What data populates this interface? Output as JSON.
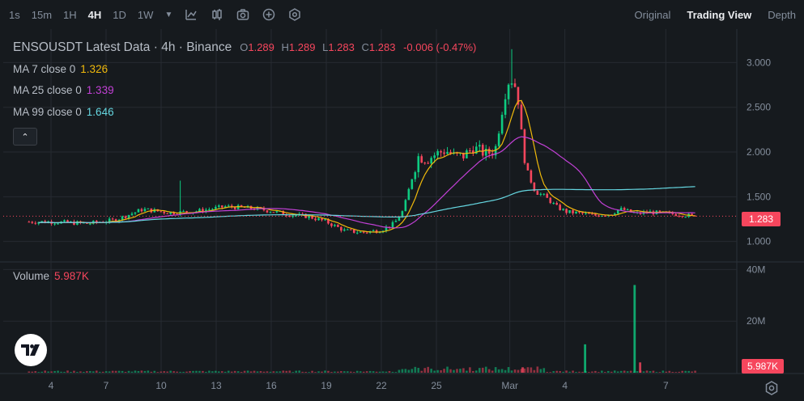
{
  "toolbar": {
    "intervals": [
      "1s",
      "15m",
      "1H",
      "4H",
      "1D",
      "1W"
    ],
    "active_interval": "4H",
    "icons": [
      "chevron-down-icon",
      "line-tool-icon",
      "candle-type-icon",
      "camera-icon",
      "add-indicator-icon",
      "settings-hex-icon"
    ]
  },
  "views": {
    "original": "Original",
    "trading_view": "Trading View",
    "depth": "Depth",
    "active": "Trading View"
  },
  "legend": {
    "symbol_title": "ENSOUSDT Latest Data · 4h · Binance",
    "o_key": "O",
    "o_val": "1.289",
    "h_key": "H",
    "h_val": "1.289",
    "l_key": "L",
    "l_val": "1.283",
    "c_key": "C",
    "c_val": "1.283",
    "change": "-0.006 (-0.47%)",
    "ma7_label": "MA 7 close 0",
    "ma7_val": "1.326",
    "ma25_label": "MA 25 close 0",
    "ma25_val": "1.339",
    "ma99_label": "MA 99 close 0",
    "ma99_val": "1.646"
  },
  "volume_legend": {
    "label": "Volume",
    "value": "5.987K"
  },
  "price_tag": "1.283",
  "volume_tag": "5.987K",
  "colors": {
    "up": "#0ecb81",
    "down": "#f6465d",
    "ma7": "#f0b90b",
    "ma25": "#c240d6",
    "ma99": "#65d6e0",
    "grid": "#262b31",
    "text": "#848e9c"
  },
  "chart_data": {
    "type": "candlestick",
    "price_axis": {
      "ticks": [
        "3.000",
        "2.500",
        "2.000",
        "1.500",
        "1.000"
      ],
      "values": [
        3.0,
        2.5,
        2.0,
        1.5,
        1.0
      ],
      "range": [
        0.78,
        3.32
      ]
    },
    "volume_axis": {
      "ticks": [
        "40M",
        "20M"
      ],
      "values": [
        40,
        20
      ],
      "range": [
        0,
        42
      ],
      "unit": "M"
    },
    "x_axis": {
      "ticks": [
        "4",
        "7",
        "10",
        "13",
        "16",
        "19",
        "22",
        "25",
        "Mar",
        "4",
        "7"
      ]
    },
    "last_price": 1.283,
    "ma_lines": [
      {
        "name": "MA 7",
        "color": "#f0b90b"
      },
      {
        "name": "MA 25",
        "color": "#c240d6"
      },
      {
        "name": "MA 99",
        "color": "#65d6e0"
      }
    ],
    "price_series": [
      [
        0.0,
        1.22
      ],
      [
        2.0,
        1.2
      ],
      [
        3.5,
        1.24
      ],
      [
        5.0,
        1.36
      ],
      [
        6.5,
        1.32
      ],
      [
        8.0,
        1.34
      ],
      [
        9.5,
        1.39
      ],
      [
        11.0,
        1.37
      ],
      [
        12.0,
        1.34
      ],
      [
        13.0,
        1.3
      ],
      [
        14.0,
        1.28
      ],
      [
        15.0,
        1.22
      ],
      [
        16.0,
        1.12
      ],
      [
        17.0,
        1.1
      ],
      [
        18.0,
        1.13
      ],
      [
        18.7,
        1.2
      ],
      [
        19.2,
        1.35
      ],
      [
        19.6,
        1.66
      ],
      [
        20.0,
        1.95
      ],
      [
        20.5,
        1.92
      ],
      [
        21.0,
        1.98
      ],
      [
        21.5,
        2.02
      ],
      [
        22.0,
        1.95
      ],
      [
        22.5,
        1.96
      ],
      [
        23.0,
        2.05
      ],
      [
        23.7,
        1.98
      ],
      [
        24.2,
        2.02
      ],
      [
        24.7,
        2.62
      ],
      [
        25.0,
        2.84
      ],
      [
        25.4,
        2.7
      ],
      [
        25.7,
        2.05
      ],
      [
        26.0,
        1.75
      ],
      [
        26.4,
        1.55
      ],
      [
        26.8,
        1.52
      ],
      [
        27.2,
        1.45
      ],
      [
        27.6,
        1.38
      ],
      [
        28.1,
        1.33
      ],
      [
        28.6,
        1.32
      ],
      [
        29.0,
        1.31
      ],
      [
        29.6,
        1.29
      ],
      [
        30.0,
        1.3
      ],
      [
        30.5,
        1.31
      ],
      [
        31.0,
        1.36
      ],
      [
        31.3,
        1.35
      ],
      [
        31.5,
        1.33
      ],
      [
        32.0,
        1.31
      ],
      [
        32.5,
        1.33
      ],
      [
        33.0,
        1.32
      ],
      [
        33.7,
        1.31
      ],
      [
        34.4,
        1.3
      ],
      [
        35.0,
        1.28
      ]
    ],
    "volume_peaks": [
      {
        "x": 25.7,
        "v": 2.1,
        "dir": "down"
      },
      {
        "x": 29.1,
        "v": 11.0,
        "dir": "up"
      },
      {
        "x": 31.8,
        "v": 34.0,
        "dir": "up"
      },
      {
        "x": 32.1,
        "v": 4.0,
        "dir": "down"
      }
    ]
  }
}
